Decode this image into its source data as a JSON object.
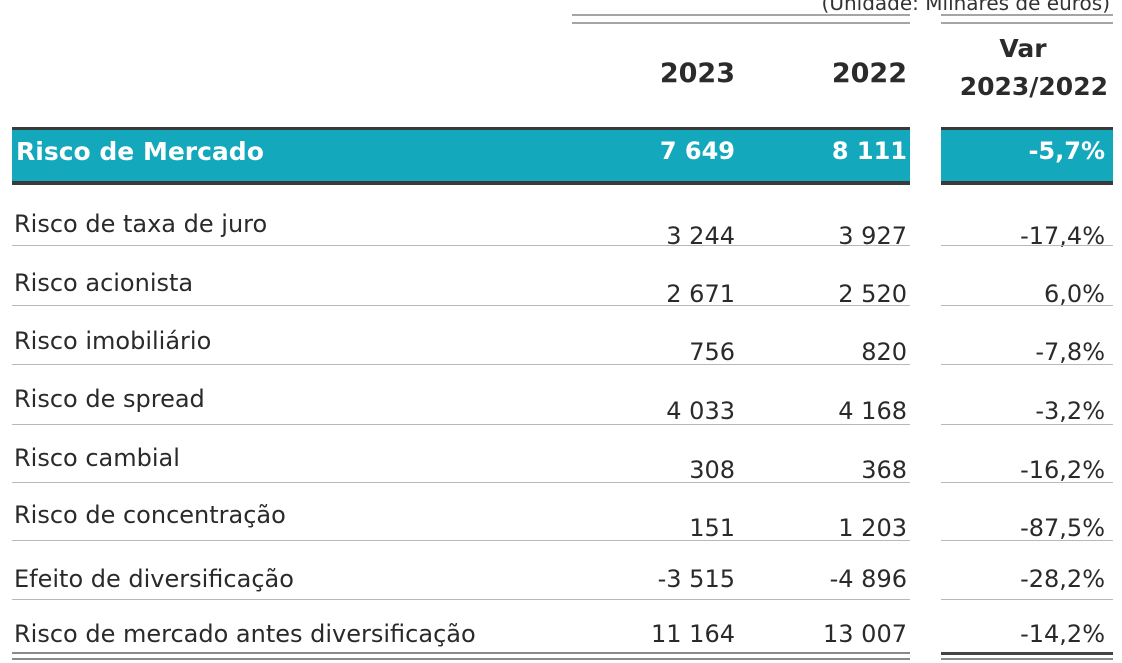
{
  "header": {
    "unit_note": "(Unidade: Milhares de euros)",
    "col_2023": "2023",
    "col_2022": "2022",
    "col_var_line1": "Var",
    "col_var_line2": "2023/2022"
  },
  "highlight": {
    "label": "Risco de Mercado",
    "v2023": "7 649",
    "v2022": "8 111",
    "var": "-5,7%"
  },
  "rows": [
    {
      "label": "Risco de taxa de juro",
      "v2023": "3 244",
      "v2022": "3 927",
      "var": "-17,4%"
    },
    {
      "label": "Risco acionista",
      "v2023": "2 671",
      "v2022": "2 520",
      "var": "6,0%"
    },
    {
      "label": "Risco imobiliário",
      "v2023": "756",
      "v2022": "820",
      "var": "-7,8%"
    },
    {
      "label": "Risco de spread",
      "v2023": "4 033",
      "v2022": "4 168",
      "var": "-3,2%"
    },
    {
      "label": "Risco cambial",
      "v2023": "308",
      "v2022": "368",
      "var": "-16,2%"
    },
    {
      "label": "Risco de concentração",
      "v2023": "151",
      "v2022": "1 203",
      "var": "-87,5%"
    },
    {
      "label": "Efeito de diversificação",
      "v2023": "-3 515",
      "v2022": "-4 896",
      "var": "-28,2%"
    },
    {
      "label": "Risco de mercado antes diversificação",
      "v2023": "11 164",
      "v2022": "13 007",
      "var": "-14,2%"
    }
  ],
  "colors": {
    "accent": "#14a8bd",
    "text": "#2a2a2a"
  }
}
